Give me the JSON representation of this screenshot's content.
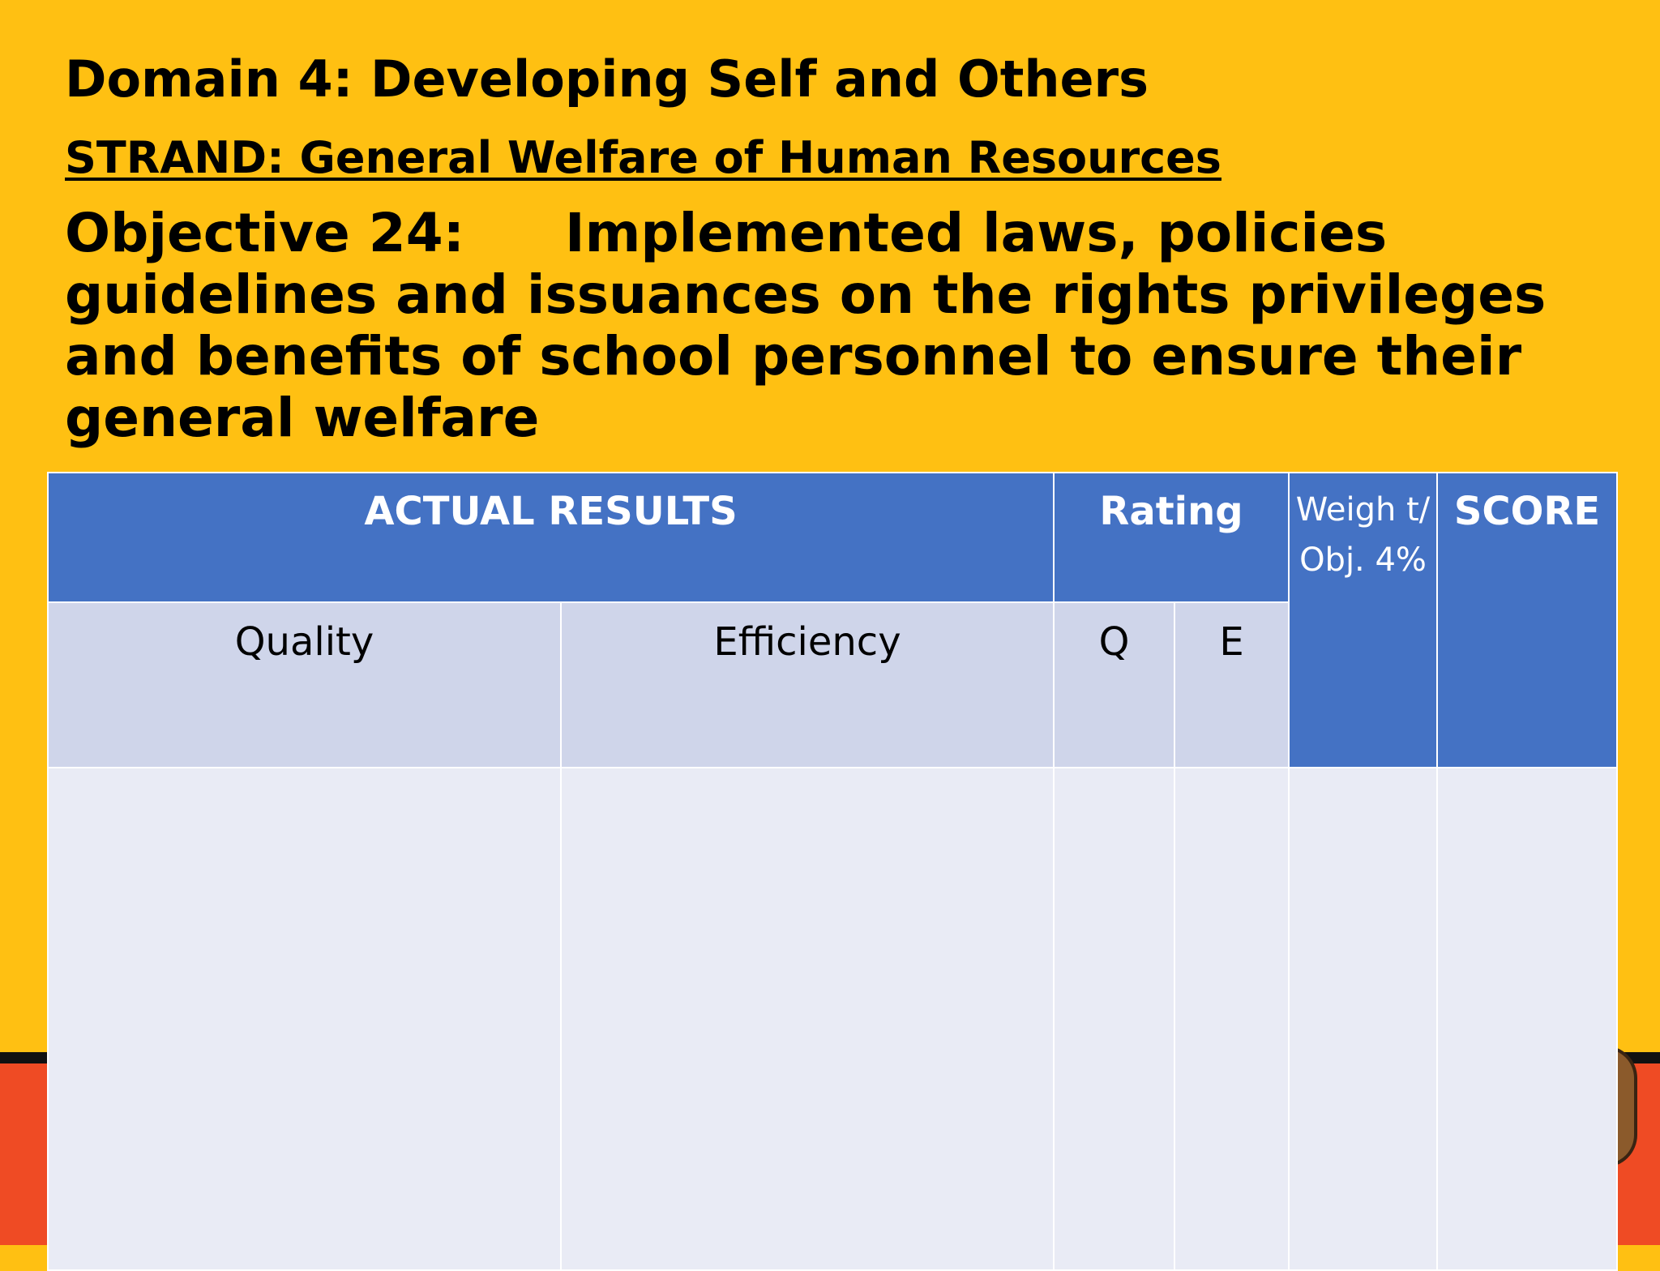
{
  "slide": {
    "domain_title": "Domain 4: Developing Self and Others",
    "strand_title": "STRAND: General Welfare of Human Resources",
    "objective_label": "Objective 24:",
    "objective_text": "Implemented laws, policies guidelines and issuances on the rights privileges and benefits of school personnel to ensure their general welfare"
  },
  "table": {
    "header": {
      "actual_results": "ACTUAL RESULTS",
      "rating": "Rating",
      "weight": "Weigh t/ Obj. 4%",
      "score": "SCORE"
    },
    "subheader": {
      "quality": "Quality",
      "efficiency": "Efficiency",
      "q": "Q",
      "e": "E"
    },
    "rows": [
      {
        "quality": "",
        "efficiency": "",
        "q": "",
        "e": "",
        "weight": "",
        "score": ""
      }
    ]
  },
  "colors": {
    "background": "#FFC012",
    "header_blue": "#4472C4",
    "subheader": "#CFD5EA",
    "body_cell": "#E9EBF5",
    "bottom_band": "#EF4B24"
  }
}
